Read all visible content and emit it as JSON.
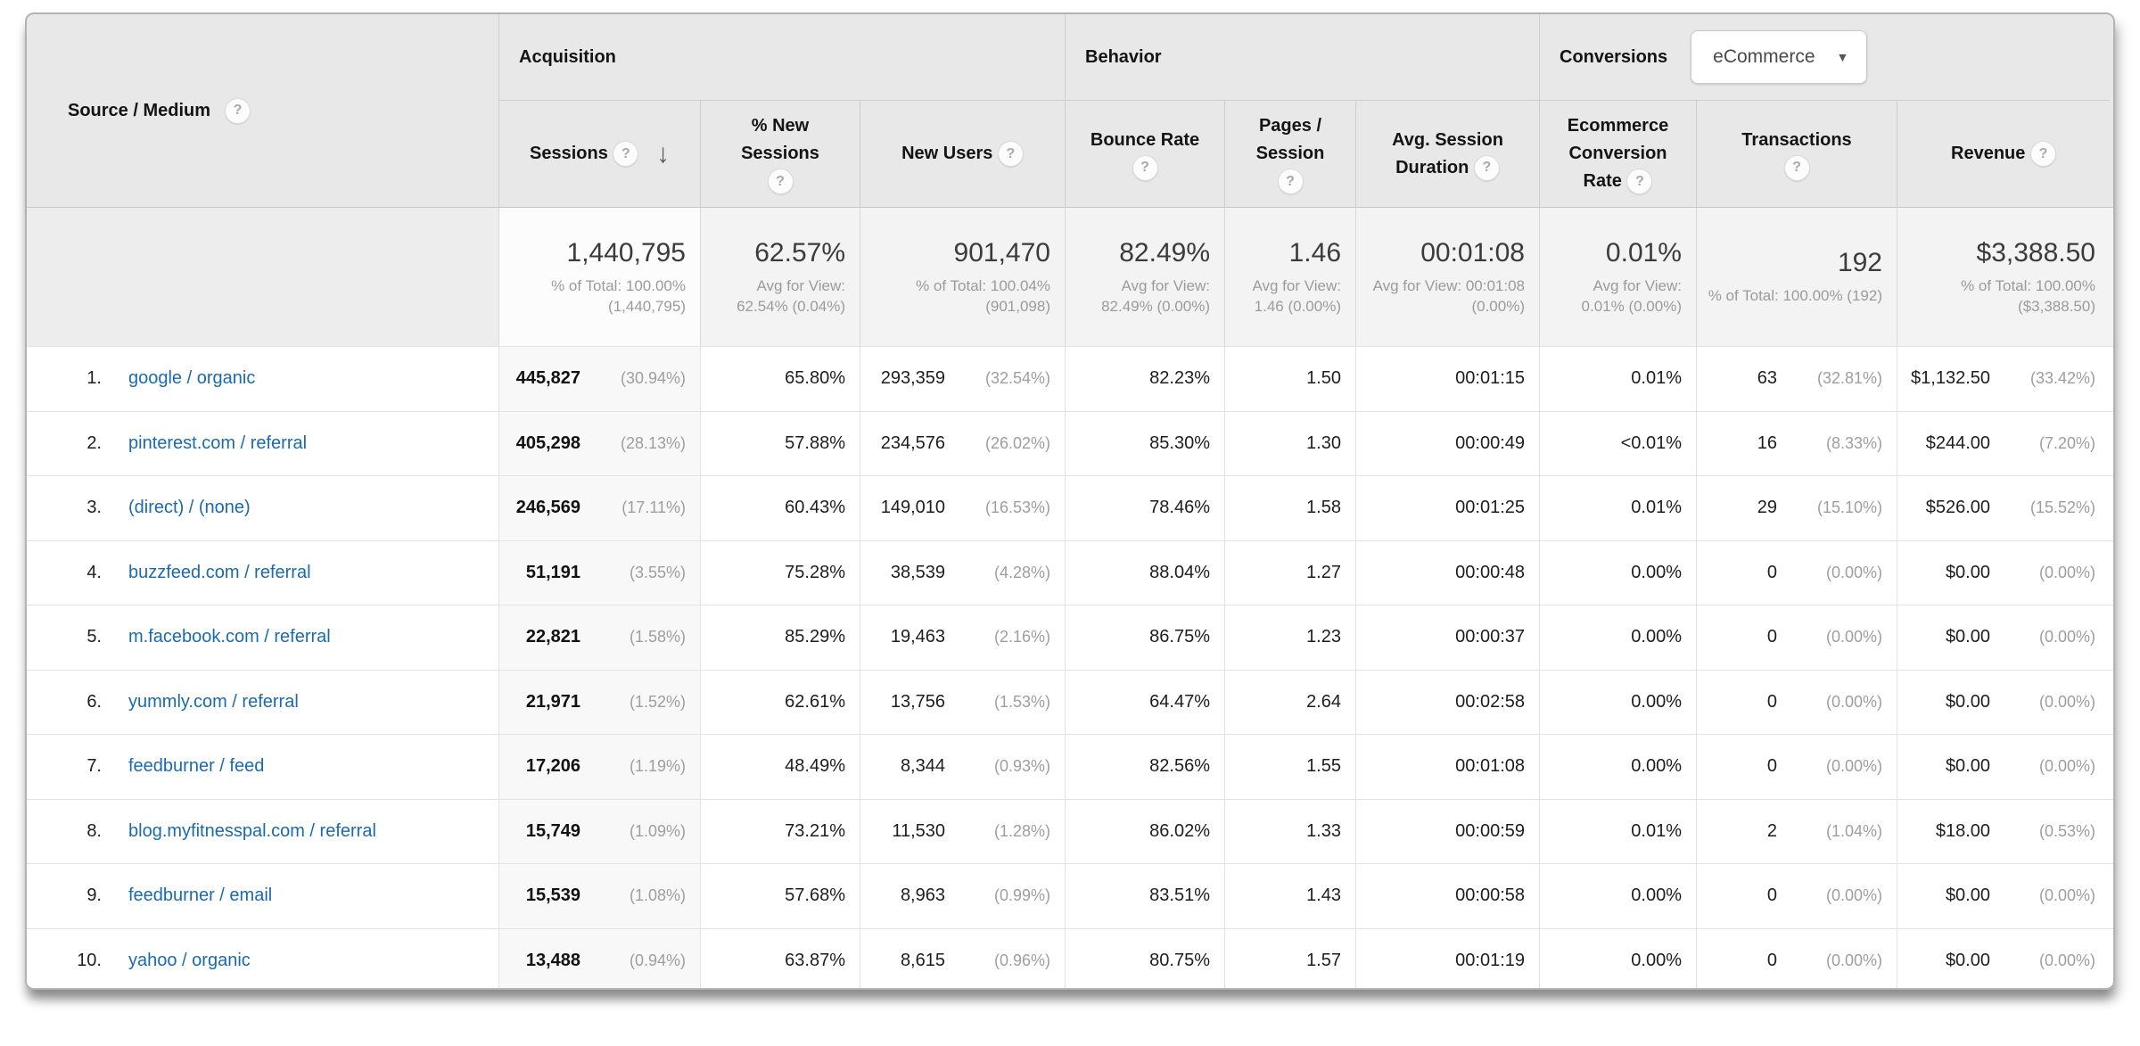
{
  "icons": {
    "help": "?",
    "sort_desc": "↓",
    "caret": "▼"
  },
  "table": {
    "row_header": {
      "label": "Source / Medium"
    },
    "groups": [
      {
        "label": "Acquisition"
      },
      {
        "label": "Behavior"
      },
      {
        "label": "Conversions",
        "selector_value": "eCommerce"
      }
    ],
    "columns": [
      {
        "label": "Sessions",
        "sorted": "descending"
      },
      {
        "label": "% New Sessions"
      },
      {
        "label": "New Users"
      },
      {
        "label": "Bounce Rate"
      },
      {
        "label": "Pages / Session"
      },
      {
        "label": "Avg. Session Duration"
      },
      {
        "label": "Ecommerce Conversion Rate"
      },
      {
        "label": "Transactions"
      },
      {
        "label": "Revenue"
      }
    ],
    "summary": {
      "sessions": {
        "value": "1,440,795",
        "note": "% of Total: 100.00% (1,440,795)"
      },
      "new_sessions": {
        "value": "62.57%",
        "note": "Avg for View: 62.54% (0.04%)"
      },
      "new_users": {
        "value": "901,470",
        "note": "% of Total: 100.04% (901,098)"
      },
      "bounce_rate": {
        "value": "82.49%",
        "note": "Avg for View: 82.49% (0.00%)"
      },
      "pages": {
        "value": "1.46",
        "note": "Avg for View: 1.46 (0.00%)"
      },
      "duration": {
        "value": "00:01:08",
        "note": "Avg for View: 00:01:08 (0.00%)"
      },
      "conv_rate": {
        "value": "0.01%",
        "note": "Avg for View: 0.01% (0.00%)"
      },
      "transactions": {
        "value": "192",
        "note": "% of Total: 100.00% (192)"
      },
      "revenue": {
        "value": "$3,388.50",
        "note": "% of Total: 100.00% ($3,388.50)"
      }
    },
    "rows": [
      {
        "rank": "1.",
        "source": "google / organic",
        "metrics": [
          {
            "v": "445,827",
            "p": "(30.94%)"
          },
          {
            "v": "65.80%"
          },
          {
            "v": "293,359",
            "p": "(32.54%)"
          },
          {
            "v": "82.23%"
          },
          {
            "v": "1.50"
          },
          {
            "v": "00:01:15"
          },
          {
            "v": "0.01%"
          },
          {
            "v": "63",
            "p": "(32.81%)"
          },
          {
            "v": "$1,132.50",
            "p": "(33.42%)"
          }
        ]
      },
      {
        "rank": "2.",
        "source": "pinterest.com / referral",
        "metrics": [
          {
            "v": "405,298",
            "p": "(28.13%)"
          },
          {
            "v": "57.88%"
          },
          {
            "v": "234,576",
            "p": "(26.02%)"
          },
          {
            "v": "85.30%"
          },
          {
            "v": "1.30"
          },
          {
            "v": "00:00:49"
          },
          {
            "v": "<0.01%"
          },
          {
            "v": "16",
            "p": "(8.33%)"
          },
          {
            "v": "$244.00",
            "p": "(7.20%)"
          }
        ]
      },
      {
        "rank": "3.",
        "source": "(direct) / (none)",
        "metrics": [
          {
            "v": "246,569",
            "p": "(17.11%)"
          },
          {
            "v": "60.43%"
          },
          {
            "v": "149,010",
            "p": "(16.53%)"
          },
          {
            "v": "78.46%"
          },
          {
            "v": "1.58"
          },
          {
            "v": "00:01:25"
          },
          {
            "v": "0.01%"
          },
          {
            "v": "29",
            "p": "(15.10%)"
          },
          {
            "v": "$526.00",
            "p": "(15.52%)"
          }
        ]
      },
      {
        "rank": "4.",
        "source": "buzzfeed.com / referral",
        "metrics": [
          {
            "v": "51,191",
            "p": "(3.55%)"
          },
          {
            "v": "75.28%"
          },
          {
            "v": "38,539",
            "p": "(4.28%)"
          },
          {
            "v": "88.04%"
          },
          {
            "v": "1.27"
          },
          {
            "v": "00:00:48"
          },
          {
            "v": "0.00%"
          },
          {
            "v": "0",
            "p": "(0.00%)"
          },
          {
            "v": "$0.00",
            "p": "(0.00%)"
          }
        ]
      },
      {
        "rank": "5.",
        "source": "m.facebook.com / referral",
        "metrics": [
          {
            "v": "22,821",
            "p": "(1.58%)"
          },
          {
            "v": "85.29%"
          },
          {
            "v": "19,463",
            "p": "(2.16%)"
          },
          {
            "v": "86.75%"
          },
          {
            "v": "1.23"
          },
          {
            "v": "00:00:37"
          },
          {
            "v": "0.00%"
          },
          {
            "v": "0",
            "p": "(0.00%)"
          },
          {
            "v": "$0.00",
            "p": "(0.00%)"
          }
        ]
      },
      {
        "rank": "6.",
        "source": "yummly.com / referral",
        "metrics": [
          {
            "v": "21,971",
            "p": "(1.52%)"
          },
          {
            "v": "62.61%"
          },
          {
            "v": "13,756",
            "p": "(1.53%)"
          },
          {
            "v": "64.47%"
          },
          {
            "v": "2.64"
          },
          {
            "v": "00:02:58"
          },
          {
            "v": "0.00%"
          },
          {
            "v": "0",
            "p": "(0.00%)"
          },
          {
            "v": "$0.00",
            "p": "(0.00%)"
          }
        ]
      },
      {
        "rank": "7.",
        "source": "feedburner / feed",
        "metrics": [
          {
            "v": "17,206",
            "p": "(1.19%)"
          },
          {
            "v": "48.49%"
          },
          {
            "v": "8,344",
            "p": "(0.93%)"
          },
          {
            "v": "82.56%"
          },
          {
            "v": "1.55"
          },
          {
            "v": "00:01:08"
          },
          {
            "v": "0.00%"
          },
          {
            "v": "0",
            "p": "(0.00%)"
          },
          {
            "v": "$0.00",
            "p": "(0.00%)"
          }
        ]
      },
      {
        "rank": "8.",
        "source": "blog.myfitnesspal.com / referral",
        "metrics": [
          {
            "v": "15,749",
            "p": "(1.09%)"
          },
          {
            "v": "73.21%"
          },
          {
            "v": "11,530",
            "p": "(1.28%)"
          },
          {
            "v": "86.02%"
          },
          {
            "v": "1.33"
          },
          {
            "v": "00:00:59"
          },
          {
            "v": "0.01%"
          },
          {
            "v": "2",
            "p": "(1.04%)"
          },
          {
            "v": "$18.00",
            "p": "(0.53%)"
          }
        ]
      },
      {
        "rank": "9.",
        "source": "feedburner / email",
        "metrics": [
          {
            "v": "15,539",
            "p": "(1.08%)"
          },
          {
            "v": "57.68%"
          },
          {
            "v": "8,963",
            "p": "(0.99%)"
          },
          {
            "v": "83.51%"
          },
          {
            "v": "1.43"
          },
          {
            "v": "00:00:58"
          },
          {
            "v": "0.00%"
          },
          {
            "v": "0",
            "p": "(0.00%)"
          },
          {
            "v": "$0.00",
            "p": "(0.00%)"
          }
        ]
      },
      {
        "rank": "10.",
        "source": "yahoo / organic",
        "metrics": [
          {
            "v": "13,488",
            "p": "(0.94%)"
          },
          {
            "v": "63.87%"
          },
          {
            "v": "8,615",
            "p": "(0.96%)"
          },
          {
            "v": "80.75%"
          },
          {
            "v": "1.57"
          },
          {
            "v": "00:01:19"
          },
          {
            "v": "0.00%"
          },
          {
            "v": "0",
            "p": "(0.00%)"
          },
          {
            "v": "$0.00",
            "p": "(0.00%)"
          }
        ]
      }
    ]
  }
}
